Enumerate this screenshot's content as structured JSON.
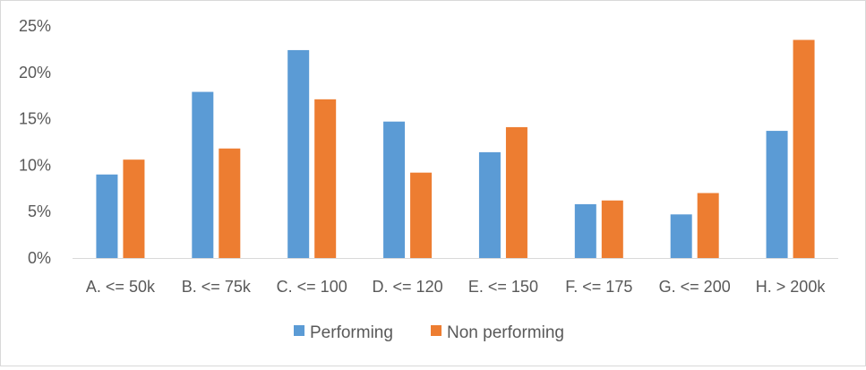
{
  "chart_data": {
    "type": "bar",
    "title": "",
    "xlabel": "",
    "ylabel": "",
    "categories": [
      "A. <= 50k",
      "B. <= 75k",
      "C. <= 100",
      "D. <= 120",
      "E. <= 150",
      "F. <= 175",
      "G. <= 200",
      "H. > 200k"
    ],
    "series": [
      {
        "name": "Performing",
        "color": "#5b9bd5",
        "values": [
          9.0,
          17.9,
          22.4,
          14.7,
          11.4,
          5.8,
          4.7,
          13.7
        ]
      },
      {
        "name": "Non performing",
        "color": "#ed7d31",
        "values": [
          10.6,
          11.8,
          17.1,
          9.2,
          14.1,
          6.2,
          7.0,
          23.5
        ]
      }
    ],
    "ylim": [
      0,
      25
    ],
    "yticks": [
      0,
      5,
      10,
      15,
      20,
      25
    ],
    "ytick_labels": [
      "0%",
      "5%",
      "10%",
      "15%",
      "20%",
      "25%"
    ],
    "grid": false,
    "legend_position": "bottom"
  }
}
